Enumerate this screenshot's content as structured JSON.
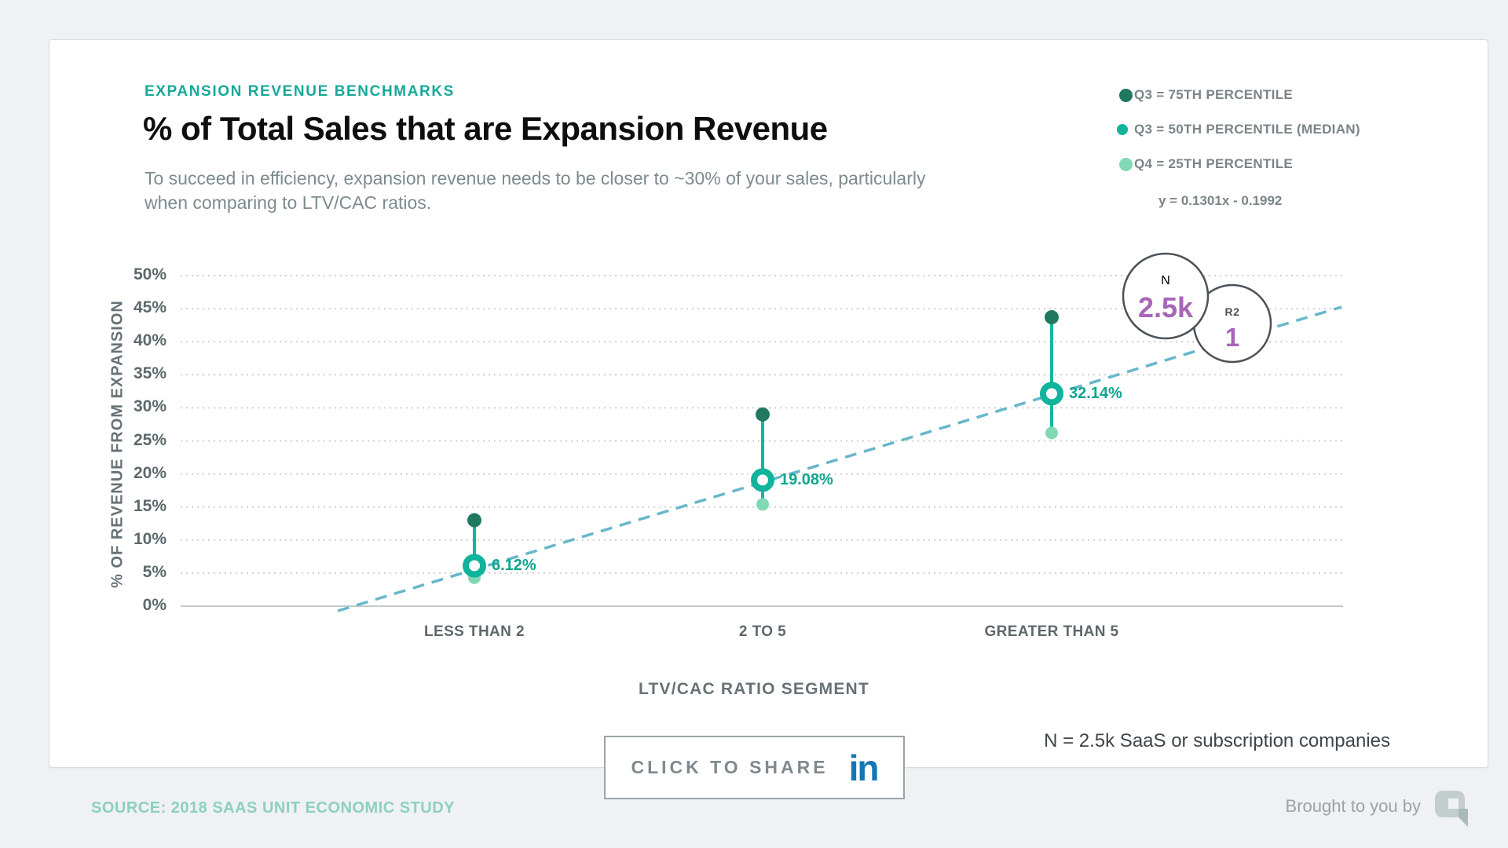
{
  "header": {
    "eyebrow": "EXPANSION REVENUE BENCHMARKS",
    "title": "% of Total Sales that are Expansion Revenue",
    "subtitle": "To succeed in efficiency, expansion revenue needs to be closer to ~30% of your sales, particularly when comparing to LTV/CAC ratios."
  },
  "legend": {
    "items": [
      {
        "label": "Q3 = 75TH PERCENTILE",
        "marker": "filled-dot",
        "color": "#20795f"
      },
      {
        "label": "Q3 = 50TH PERCENTILE (MEDIAN)",
        "marker": "ring",
        "color": "#10b39b"
      },
      {
        "label": "Q4 = 25TH PERCENTILE",
        "marker": "filled-dot",
        "color": "#82d8b4"
      }
    ],
    "equation": "y = 0.1301x - 0.1992"
  },
  "chart_data": {
    "type": "scatter",
    "variant": "percentile-range-dot-plot",
    "title": "% of Total Sales that are Expansion Revenue",
    "categories": [
      "LESS THAN 2",
      "2 TO 5",
      "GREATER THAN 5"
    ],
    "series": [
      {
        "name": "Q3 = 75TH PERCENTILE",
        "values": [
          13,
          29,
          43.7
        ]
      },
      {
        "name": "Q3 = 50TH PERCENTILE (MEDIAN)",
        "values": [
          6.12,
          19.08,
          32.14
        ],
        "labels": [
          "6.12%",
          "19.08%",
          "32.14%"
        ]
      },
      {
        "name": "Q4 = 25TH PERCENTILE",
        "values": [
          4.3,
          15.4,
          26.2
        ]
      }
    ],
    "trendline": {
      "equation": "y = 0.1301x - 0.1992",
      "r2": "1",
      "n": "2.5k",
      "style": "dashed"
    },
    "xlabel": "LTV/CAC RATIO SEGMENT",
    "ylabel": "% OF REVENUE FROM EXPANSION",
    "ylim": [
      0,
      50
    ],
    "yticks": [
      "0%",
      "5%",
      "10%",
      "15%",
      "20%",
      "25%",
      "30%",
      "35%",
      "40%",
      "45%",
      "50%"
    ],
    "grid": "dotted-horizontal",
    "legend_position": "top-right"
  },
  "stat_bubbles": [
    {
      "label": "N",
      "value": "2.5k"
    },
    {
      "label": "R2",
      "value": "1"
    }
  ],
  "share": {
    "label": "CLICK TO SHARE",
    "network_icon": "linkedin",
    "icon_glyph": "in"
  },
  "note": "N = 2.5k SaaS or subscription companies",
  "footer": {
    "source": "SOURCE: 2018 SAAS UNIT ECONOMIC STUDY",
    "attribution": "Brought to you by"
  },
  "colors": {
    "accent_teal": "#18a89a",
    "median_ring": "#10b39b",
    "p75_dot": "#20795f",
    "p25_dot": "#82d8b4",
    "range_line": "#13b79e",
    "value_label": "#0ea58d",
    "trend_dash": "#67b7cb",
    "grid_dotted": "#cdd1d4",
    "axis_line": "#c5cacd",
    "bubble_border": "#4b5258",
    "bubble_value": "#a766b8",
    "linkedin_blue": "#1478b6",
    "source_teal": "#8bd0c0"
  }
}
